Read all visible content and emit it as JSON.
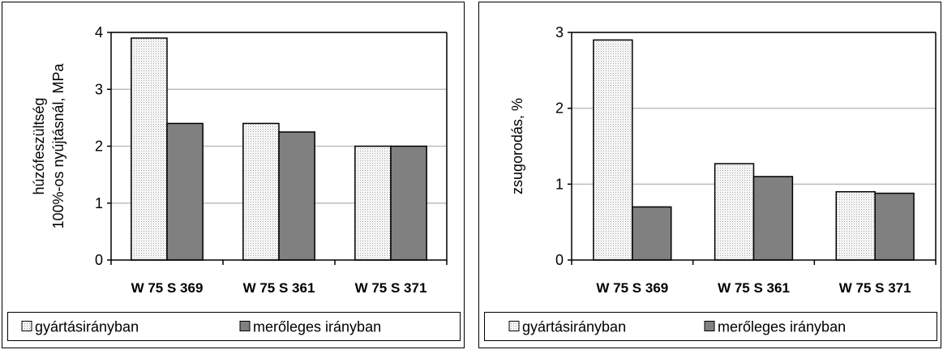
{
  "chart_data": [
    {
      "type": "bar",
      "categories": [
        "W 75 S 369",
        "W 75 S 361",
        "W 75 S 371"
      ],
      "series": [
        {
          "name": "gyártásirányban",
          "values": [
            3.9,
            2.4,
            2.0
          ],
          "color": "#f2f2f2",
          "pattern": "dotted"
        },
        {
          "name": "merőleges irányban",
          "values": [
            2.4,
            2.25,
            2.0
          ],
          "color": "#808080",
          "pattern": "solid"
        }
      ],
      "ylabel": [
        "húzófeszültség",
        "100%-os nyújtásnál, MPa"
      ],
      "ylim": [
        0,
        4
      ],
      "yticks": [
        "0",
        "1",
        "2",
        "3",
        "4"
      ],
      "grid": true,
      "legend_position": "bottom"
    },
    {
      "type": "bar",
      "categories": [
        "W 75 S 369",
        "W 75 S 361",
        "W 75 S 371"
      ],
      "series": [
        {
          "name": "gyártásirányban",
          "values": [
            2.9,
            1.27,
            0.9
          ],
          "color": "#f2f2f2",
          "pattern": "dotted"
        },
        {
          "name": "merőleges irányban",
          "values": [
            0.7,
            1.1,
            0.88
          ],
          "color": "#808080",
          "pattern": "solid"
        }
      ],
      "ylabel": [
        "zsugorodás, %"
      ],
      "ylim": [
        0,
        3
      ],
      "yticks": [
        "0",
        "1",
        "2",
        "3"
      ],
      "grid": true,
      "legend_position": "bottom"
    }
  ]
}
